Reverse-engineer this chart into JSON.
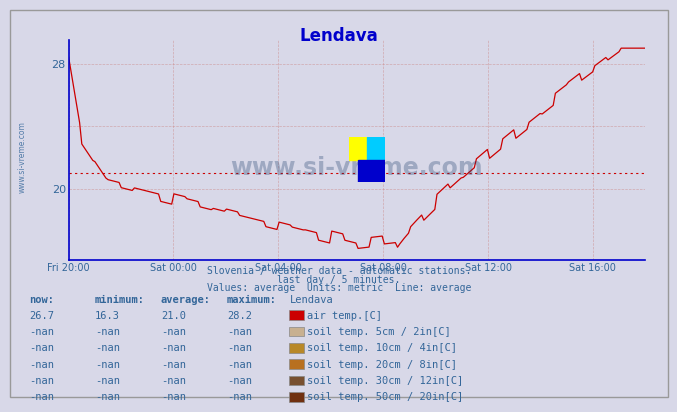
{
  "title": "Lendava",
  "title_color": "#0000cc",
  "bg_color": "#d8d8e8",
  "plot_bg_color": "#d8d8e8",
  "grid_color": "#cc8888",
  "x_label_color": "#336699",
  "y_label_color": "#336699",
  "line_color": "#cc0000",
  "avg_line_color": "#cc0000",
  "subtitle1": "Slovenia / weather data - automatic stations.",
  "subtitle2": "last day / 5 minutes.",
  "subtitle3": "Values: average  Units: metric  Line: average",
  "subtitle_color": "#336699",
  "watermark": "www.si-vreme.com",
  "watermark_color": "#1a3a6a",
  "x_ticks": [
    "Fri 20:00",
    "Sat 00:00",
    "Sat 04:00",
    "Sat 08:00",
    "Sat 12:00",
    "Sat 16:00"
  ],
  "x_tick_positions": [
    0,
    4,
    8,
    12,
    16,
    20
  ],
  "ylim": [
    15.5,
    29.5
  ],
  "xlim": [
    0,
    22
  ],
  "avg_value": 21.0,
  "table_headers": [
    "now:",
    "minimum:",
    "average:",
    "maximum:",
    "Lendava"
  ],
  "table_rows": [
    [
      "26.7",
      "16.3",
      "21.0",
      "28.2",
      "air temp.[C]",
      "#cc0000"
    ],
    [
      "-nan",
      "-nan",
      "-nan",
      "-nan",
      "soil temp. 5cm / 2in[C]",
      "#c8b090"
    ],
    [
      "-nan",
      "-nan",
      "-nan",
      "-nan",
      "soil temp. 10cm / 4in[C]",
      "#b88828"
    ],
    [
      "-nan",
      "-nan",
      "-nan",
      "-nan",
      "soil temp. 20cm / 8in[C]",
      "#b87020"
    ],
    [
      "-nan",
      "-nan",
      "-nan",
      "-nan",
      "soil temp. 30cm / 12in[C]",
      "#785030"
    ],
    [
      "-nan",
      "-nan",
      "-nan",
      "-nan",
      "soil temp. 50cm / 20in[C]",
      "#703010"
    ]
  ]
}
